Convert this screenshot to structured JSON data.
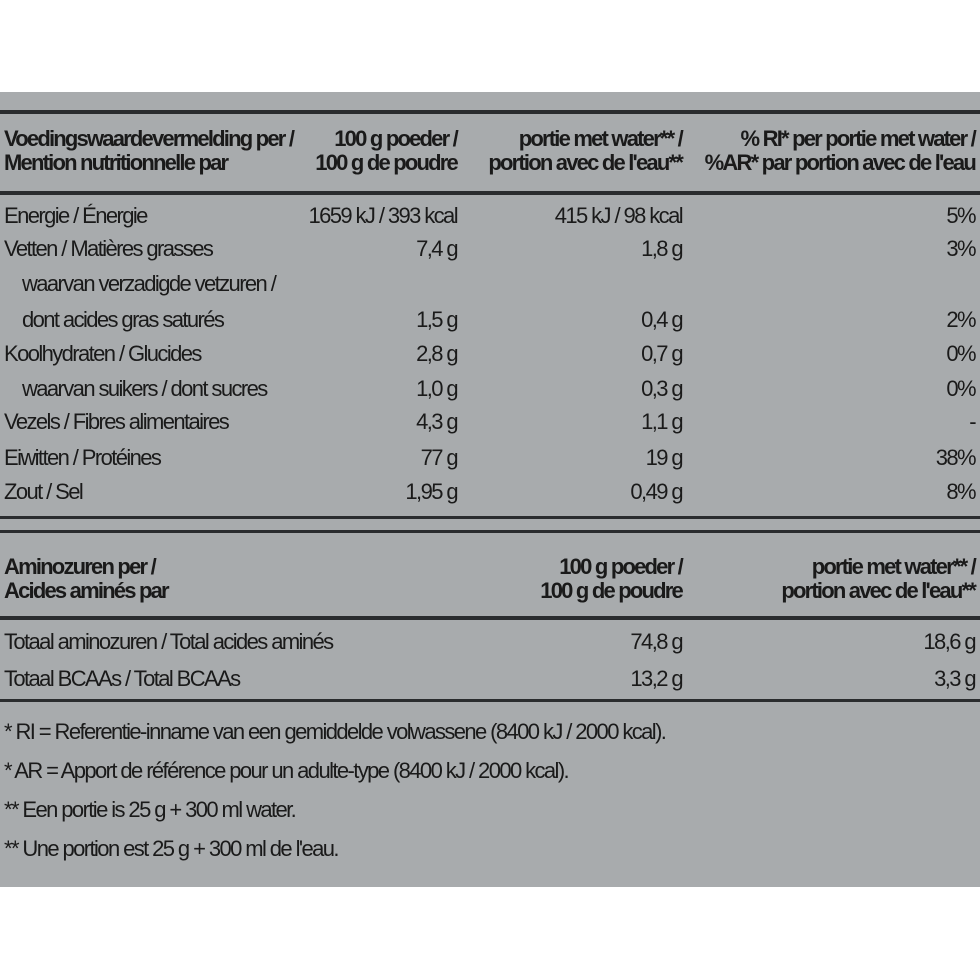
{
  "nutrition": {
    "headers": [
      [
        "Voedingswaardevermelding per /",
        "Mention nutritionnelle par"
      ],
      [
        "100 g poeder /",
        "100 g de poudre"
      ],
      [
        "portie met water** /",
        "portion avec de l'eau**"
      ],
      [
        "% RI* per portie met water /",
        "%AR* par portion avec de l'eau"
      ]
    ],
    "rows": [
      {
        "label": "Energie / Énergie",
        "per100": "1659 kJ / 393 kcal",
        "portion": "415 kJ / 98 kcal",
        "ri": "5%"
      },
      {
        "label": "Vetten / Matières grasses",
        "per100": "7,4 g",
        "portion": "1,8 g",
        "ri": "3%"
      },
      {
        "label": "waarvan verzadigde vetzuren /",
        "per100": "",
        "portion": "",
        "ri": "",
        "indent": true
      },
      {
        "label": "dont acides gras saturés",
        "per100": "1,5 g",
        "portion": "0,4 g",
        "ri": "2%",
        "indent": true
      },
      {
        "label": "Koolhydraten / Glucides",
        "per100": "2,8 g",
        "portion": "0,7 g",
        "ri": "0%"
      },
      {
        "label": "waarvan suikers / dont sucres",
        "per100": "1,0 g",
        "portion": "0,3 g",
        "ri": "0%",
        "indent": true
      },
      {
        "label": "Vezels / Fibres alimentaires",
        "per100": "4,3 g",
        "portion": "1,1 g",
        "ri": "-"
      },
      {
        "label": "Eiwitten / Protéines",
        "per100": "77 g",
        "portion": "19 g",
        "ri": "38%"
      },
      {
        "label": "Zout / Sel",
        "per100": "1,95 g",
        "portion": "0,49 g",
        "ri": "8%"
      }
    ]
  },
  "amino": {
    "headers": [
      [
        "Aminozuren per /",
        "Acides aminés par"
      ],
      [
        "100 g poeder /",
        "100 g de poudre"
      ],
      [
        "portie met water** /",
        "portion avec de l'eau**"
      ]
    ],
    "rows": [
      {
        "label": "Totaal aminozuren / Total acides aminés",
        "per100": "74,8 g",
        "portion": "18,6 g"
      },
      {
        "label": "Totaal BCAAs / Total BCAAs",
        "per100": "13,2 g",
        "portion": "3,3 g"
      }
    ]
  },
  "footnotes": [
    "* RI = Referentie-inname van een gemiddelde volwassene (8400 kJ / 2000 kcal).",
    "* AR = Apport de référence pour un adulte-type (8400 kJ / 2000 kcal).",
    "** Een portie is 25 g + 300 ml water.",
    "** Une portion est 25 g + 300 ml de l'eau."
  ]
}
